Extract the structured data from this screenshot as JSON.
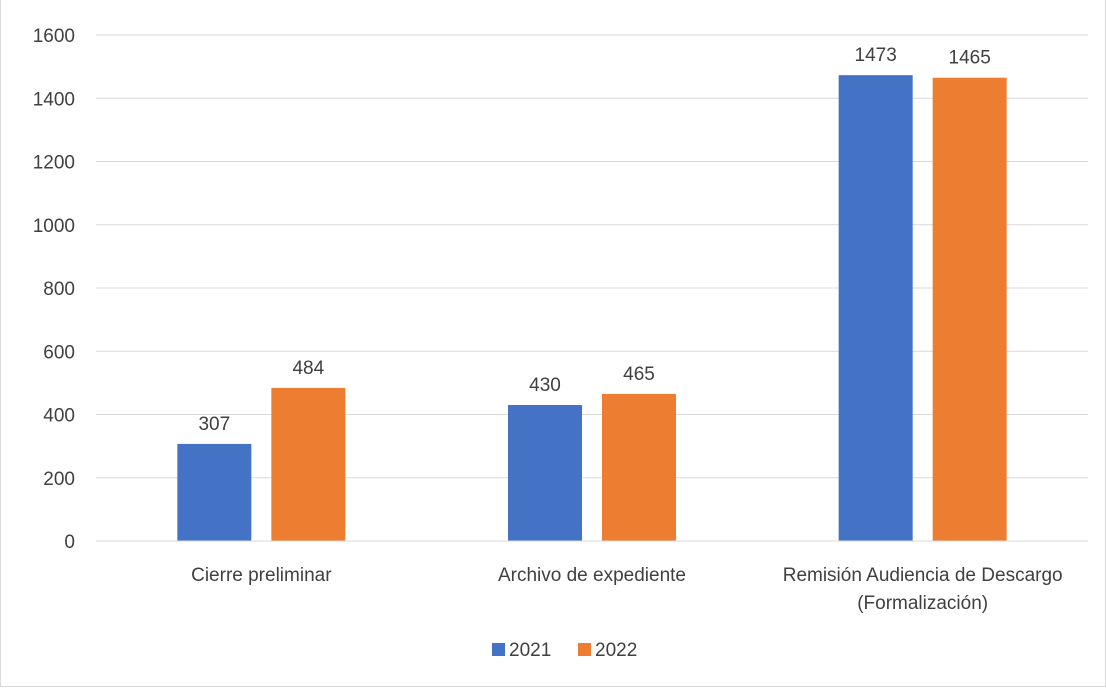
{
  "chart_data": {
    "type": "bar",
    "title": "",
    "xlabel": "",
    "ylabel": "",
    "categories": [
      [
        "Cierre preliminar"
      ],
      [
        "Archivo de expediente"
      ],
      [
        "Remisión Audiencia de Descargo",
        "(Formalización)"
      ]
    ],
    "series": [
      {
        "name": "2021",
        "color": "#4472c4",
        "values": [
          307,
          430,
          1473
        ]
      },
      {
        "name": "2022",
        "color": "#ed7d31",
        "values": [
          484,
          465,
          1465
        ]
      }
    ],
    "ylim": [
      0,
      1600
    ],
    "yticks": [
      0,
      200,
      400,
      600,
      800,
      1000,
      1200,
      1400,
      1600
    ],
    "grid": true,
    "legend_position": "bottom",
    "data_labels": true
  }
}
